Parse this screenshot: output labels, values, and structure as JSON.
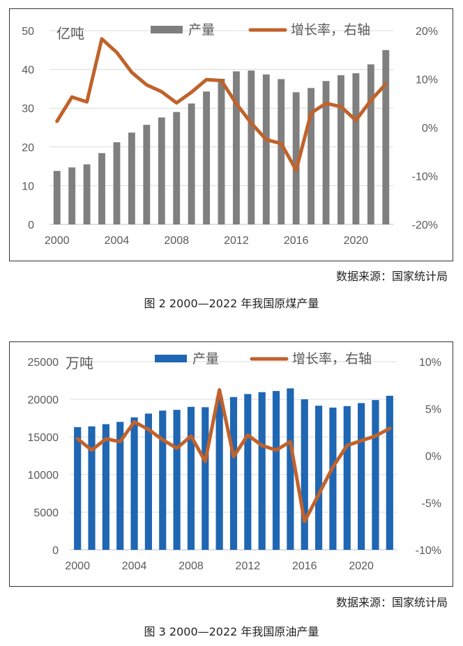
{
  "figures": [
    {
      "source": "数据来源：国家统计局",
      "caption": "图 2   2000—2022 年我国原煤产量",
      "chart_data": {
        "type": "bar+line",
        "unit_label": "亿吨",
        "x": [
          2000,
          2001,
          2002,
          2003,
          2004,
          2005,
          2006,
          2007,
          2008,
          2009,
          2010,
          2011,
          2012,
          2013,
          2014,
          2015,
          2016,
          2017,
          2018,
          2019,
          2020,
          2021,
          2022
        ],
        "x_tick_labels": [
          "2000",
          "2004",
          "2008",
          "2012",
          "2016",
          "2020"
        ],
        "ylim_left": [
          0,
          50
        ],
        "y_ticks_left": [
          "0",
          "10",
          "20",
          "30",
          "40",
          "50"
        ],
        "ylim_right": [
          -20,
          20
        ],
        "y_ticks_right": [
          "-20%",
          "-10%",
          "0%",
          "10%",
          "20%"
        ],
        "series": [
          {
            "name": "产量",
            "kind": "bar",
            "axis": "left",
            "color": "#7f7f7f",
            "values": [
              13.8,
              14.7,
              15.5,
              18.4,
              21.2,
              23.7,
              25.7,
              27.6,
              29.0,
              31.2,
              34.3,
              37.6,
              39.5,
              39.7,
              38.7,
              37.5,
              34.1,
              35.2,
              37.0,
              38.5,
              39.0,
              41.3,
              45.0
            ]
          },
          {
            "name": "增长率，右轴",
            "kind": "line",
            "axis": "right",
            "color": "#c0622b",
            "values": [
              1.3,
              6.3,
              5.3,
              18.3,
              15.5,
              11.4,
              8.8,
              7.4,
              5.1,
              7.3,
              9.9,
              9.7,
              4.9,
              0.9,
              -2.5,
              -3.3,
              -8.8,
              3.0,
              5.0,
              4.3,
              1.5,
              5.6,
              9.0
            ]
          }
        ],
        "grid": "horizontal",
        "legend": "top"
      }
    },
    {
      "source": "数据来源：国家统计局",
      "caption": "图 3   2000—2022 年我国原油产量",
      "chart_data": {
        "type": "bar+line",
        "unit_label": "万吨",
        "x": [
          2000,
          2001,
          2002,
          2003,
          2004,
          2005,
          2006,
          2007,
          2008,
          2009,
          2010,
          2011,
          2012,
          2013,
          2014,
          2015,
          2016,
          2017,
          2018,
          2019,
          2020,
          2021,
          2022
        ],
        "x_tick_labels": [
          "2000",
          "2004",
          "2008",
          "2012",
          "2016",
          "2020"
        ],
        "ylim_left": [
          0,
          25000
        ],
        "y_ticks_left": [
          "0",
          "5000",
          "10000",
          "15000",
          "20000",
          "25000"
        ],
        "ylim_right": [
          -10,
          10
        ],
        "y_ticks_right": [
          "-10%",
          "-5%",
          "0%",
          "5%",
          "10%"
        ],
        "series": [
          {
            "name": "产量",
            "kind": "bar",
            "axis": "left",
            "color": "#1f66b3",
            "values": [
              16300,
              16400,
              16700,
              17000,
              17600,
              18100,
              18500,
              18600,
              19000,
              18950,
              20300,
              20300,
              20700,
              20950,
              21100,
              21450,
              20000,
              19150,
              18900,
              19100,
              19500,
              19900,
              20470
            ]
          },
          {
            "name": "增长率，右轴",
            "kind": "line",
            "axis": "right",
            "color": "#c0622b",
            "values": [
              1.8,
              0.6,
              1.8,
              1.5,
              3.6,
              2.8,
              1.7,
              0.8,
              2.1,
              -0.6,
              7.0,
              -0.1,
              2.2,
              1.1,
              0.6,
              1.5,
              -7.0,
              -4.1,
              -1.2,
              1.1,
              1.6,
              2.1,
              2.9
            ]
          }
        ],
        "grid": "horizontal",
        "legend": "top"
      }
    }
  ]
}
